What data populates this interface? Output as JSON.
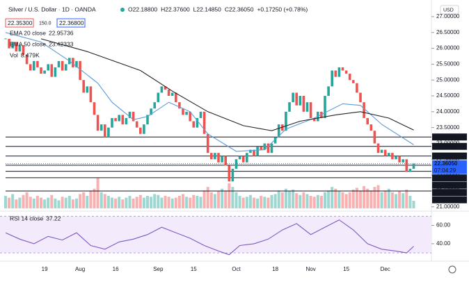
{
  "chart_data": {
    "type": "candlestick",
    "title": "Silver / U.S. Dollar · 1D · OANDA",
    "ohlc": [
      "O22.18800",
      "H22.37600",
      "L22.14850",
      "C22.36050",
      "+0.17250 (+0.78%)"
    ],
    "bid": "22.35300",
    "spread": "150.0",
    "ask": "22.36800",
    "currency": "USD",
    "up_color": "#26a69a",
    "down_color": "#ef5350",
    "categories": [
      null,
      null,
      null,
      null,
      null,
      null,
      null,
      null,
      null,
      null,
      null,
      "19",
      null,
      null,
      null,
      null,
      null,
      null,
      null,
      null,
      null,
      "Aug",
      null,
      null,
      null,
      null,
      null,
      null,
      null,
      null,
      null,
      "16",
      null,
      null,
      null,
      null,
      null,
      null,
      null,
      null,
      null,
      null,
      null,
      "Sep",
      null,
      null,
      null,
      null,
      null,
      null,
      null,
      null,
      null,
      "15",
      null,
      null,
      null,
      null,
      null,
      null,
      null,
      null,
      null,
      null,
      null,
      "Oct",
      null,
      null,
      null,
      null,
      null,
      null,
      null,
      null,
      null,
      null,
      "18",
      null,
      null,
      null,
      null,
      null,
      null,
      null,
      null,
      null,
      "Nov",
      null,
      null,
      null,
      null,
      null,
      null,
      null,
      null,
      null,
      "15",
      null,
      null,
      null,
      null,
      null,
      null,
      null,
      null,
      null,
      null,
      "Dec",
      null,
      null,
      null,
      null,
      null,
      null,
      null,
      null
    ],
    "close": [
      26.3,
      26.0,
      26.2,
      25.9,
      26.1,
      25.8,
      25.5,
      25.3,
      25.6,
      25.4,
      25.2,
      25.3,
      25.5,
      25.1,
      25.4,
      25.6,
      25.3,
      25.5,
      25.7,
      25.4,
      25.6,
      25.0,
      24.6,
      24.8,
      24.3,
      23.9,
      23.4,
      23.6,
      23.2,
      23.5,
      23.8,
      23.7,
      23.9,
      23.6,
      23.8,
      24.0,
      23.7,
      23.5,
      23.3,
      23.6,
      23.9,
      24.1,
      24.3,
      24.6,
      24.8,
      24.7,
      24.5,
      24.6,
      24.3,
      24.1,
      23.9,
      24.0,
      23.7,
      23.5,
      23.8,
      24.0,
      23.3,
      22.7,
      22.5,
      22.7,
      22.4,
      22.6,
      22.3,
      21.8,
      22.2,
      22.5,
      22.6,
      22.4,
      22.7,
      22.8,
      22.6,
      22.9,
      22.8,
      23.0,
      22.7,
      23.0,
      23.2,
      23.6,
      23.4,
      24.0,
      24.3,
      24.6,
      24.2,
      24.5,
      24.0,
      24.3,
      23.8,
      23.7,
      24.0,
      23.8,
      24.5,
      24.8,
      25.3,
      25.1,
      25.4,
      25.3,
      25.2,
      25.0,
      24.9,
      24.6,
      24.3,
      23.8,
      23.6,
      23.4,
      23.0,
      22.7,
      22.8,
      22.6,
      22.7,
      22.5,
      22.6,
      22.4,
      22.5,
      22.1,
      22.2,
      22.3605
    ],
    "volume": {
      "name": "Vol",
      "value_label": "8.479K",
      "values": [
        14,
        12,
        16,
        10,
        12,
        15,
        18,
        13,
        11,
        14,
        12,
        10,
        12,
        15,
        11,
        9,
        13,
        12,
        14,
        10,
        11,
        16,
        18,
        14,
        20,
        22,
        34,
        18,
        16,
        14,
        12,
        11,
        13,
        10,
        12,
        14,
        11,
        13,
        15,
        12,
        14,
        13,
        16,
        15,
        12,
        14,
        13,
        11,
        12,
        14,
        16,
        13,
        12,
        15,
        14,
        13,
        20,
        24,
        18,
        16,
        19,
        22,
        20,
        28,
        24,
        18,
        14,
        12,
        13,
        15,
        12,
        11,
        14,
        13,
        12,
        15,
        16,
        20,
        18,
        22,
        19,
        21,
        17,
        15,
        18,
        16,
        14,
        13,
        15,
        14,
        18,
        20,
        24,
        22,
        19,
        18,
        16,
        18,
        21,
        23,
        20,
        25,
        22,
        20,
        24,
        26,
        18,
        20,
        22,
        18,
        16,
        19,
        17,
        21,
        14,
        8.479
      ]
    },
    "ylim": [
      20.95,
      27.35
    ],
    "yticks": [
      {
        "value": 21,
        "label": "21.00000"
      },
      {
        "value": 21.5,
        "label": "21.50000"
      },
      {
        "value": 22,
        "label": "22.00000"
      },
      {
        "value": 22.5,
        "label": "22.50000"
      },
      {
        "value": 23,
        "label": "23.00000"
      },
      {
        "value": 23.5,
        "label": "23.50000"
      },
      {
        "value": 24,
        "label": "24.00000"
      },
      {
        "value": 24.5,
        "label": "24.50000"
      },
      {
        "value": 25,
        "label": "25.00000"
      },
      {
        "value": 25.5,
        "label": "25.50000"
      },
      {
        "value": 26,
        "label": "26.00000"
      },
      {
        "value": 26.5,
        "label": "26.50000"
      },
      {
        "value": 27,
        "label": "27.00000"
      }
    ],
    "levels": [
      23.20278,
      22.90656,
      22.60234,
      {
        "value": 22.3103,
        "label": "22.31030"
      },
      22.11858,
      21.91693,
      {
        "value": 21.4979,
        "label": "21.49790"
      }
    ],
    "last_price": {
      "value": 22.3605,
      "label": "22.36050",
      "countdown": "07:04:29",
      "color": "#2962ff"
    },
    "ema20": {
      "name": "EMA 20 close",
      "value_label": "22.95736",
      "color": "#5b9bd5",
      "x": [
        0,
        10,
        18,
        26,
        30,
        36,
        40,
        46,
        52,
        57,
        65,
        73,
        79,
        87,
        95,
        100,
        106,
        115
      ],
      "values": [
        26.5,
        26.2,
        25.6,
        24.9,
        24.3,
        23.75,
        23.85,
        24.3,
        24.0,
        23.3,
        22.75,
        22.8,
        23.45,
        23.8,
        24.25,
        24.2,
        23.6,
        22.95736
      ]
    },
    "ema50": {
      "name": "EMA 50 close",
      "value_label": "23.42333",
      "color": "#222222",
      "x": [
        10,
        23,
        38,
        47,
        57,
        67,
        75,
        83,
        93,
        100,
        108,
        115
      ],
      "values": [
        26.3,
        25.9,
        25.3,
        24.65,
        24.0,
        23.56,
        23.4,
        23.7,
        23.9,
        24.0,
        23.8,
        23.42333
      ]
    },
    "rsi": {
      "name": "RSI 14 close",
      "value_label": "37.22",
      "color": "#7e57c2",
      "ylim": [
        24,
        71
      ],
      "yticks": [
        {
          "value": 40,
          "label": "40.00"
        },
        {
          "value": 60,
          "label": "60.00"
        }
      ],
      "band": [
        30,
        70
      ],
      "x": [
        0,
        4,
        8,
        12,
        16,
        20,
        24,
        28,
        32,
        36,
        40,
        44,
        48,
        52,
        56,
        60,
        63,
        66,
        70,
        74,
        78,
        82,
        86,
        90,
        94,
        98,
        102,
        106,
        110,
        113,
        115
      ],
      "values": [
        52,
        45,
        40,
        48,
        44,
        52,
        38,
        34,
        42,
        45,
        50,
        58,
        52,
        46,
        38,
        32,
        28,
        38,
        40,
        45,
        55,
        62,
        50,
        58,
        66,
        55,
        40,
        34,
        32,
        30,
        37.22
      ]
    }
  }
}
